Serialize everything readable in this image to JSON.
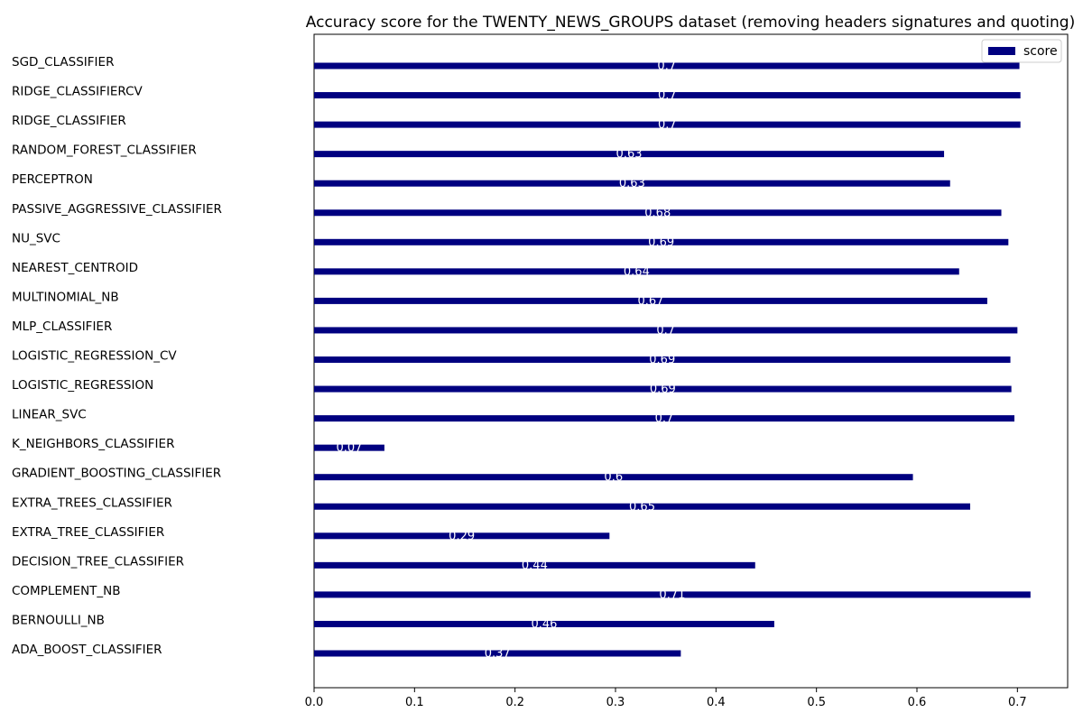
{
  "chart_data": {
    "type": "bar",
    "orientation": "horizontal",
    "title": "Accuracy score for the TWENTY_NEWS_GROUPS dataset (removing headers signatures and quoting)",
    "xlabel": "",
    "ylabel": "",
    "xlim": [
      0,
      0.75
    ],
    "xticks": [
      0.0,
      0.1,
      0.2,
      0.3,
      0.4,
      0.5,
      0.6,
      0.7
    ],
    "xtick_labels": [
      "0.0",
      "0.1",
      "0.2",
      "0.3",
      "0.4",
      "0.5",
      "0.6",
      "0.7"
    ],
    "grid": false,
    "legend": {
      "position": "top-right",
      "entries": [
        "score"
      ]
    },
    "bar_color": "#000080",
    "label_color": "#ffffff",
    "categories": [
      "ADA_BOOST_CLASSIFIER",
      "BERNOULLI_NB",
      "COMPLEMENT_NB",
      "DECISION_TREE_CLASSIFIER",
      "EXTRA_TREE_CLASSIFIER",
      "EXTRA_TREES_CLASSIFIER",
      "GRADIENT_BOOSTING_CLASSIFIER",
      "K_NEIGHBORS_CLASSIFIER",
      "LINEAR_SVC",
      "LOGISTIC_REGRESSION",
      "LOGISTIC_REGRESSION_CV",
      "MLP_CLASSIFIER",
      "MULTINOMIAL_NB",
      "NEAREST_CENTROID",
      "NU_SVC",
      "PASSIVE_AGGRESSIVE_CLASSIFIER",
      "PERCEPTRON",
      "RANDOM_FOREST_CLASSIFIER",
      "RIDGE_CLASSIFIER",
      "RIDGE_CLASSIFIERCV",
      "SGD_CLASSIFIER"
    ],
    "series": [
      {
        "name": "score",
        "values": [
          0.365,
          0.458,
          0.713,
          0.439,
          0.294,
          0.653,
          0.596,
          0.07,
          0.697,
          0.694,
          0.693,
          0.7,
          0.67,
          0.642,
          0.691,
          0.684,
          0.633,
          0.627,
          0.703,
          0.703,
          0.702
        ],
        "data_labels": [
          "0.37",
          "0.46",
          "0.71",
          "0.44",
          "0.29",
          "0.65",
          "0.6",
          "0.07",
          "0.7",
          "0.69",
          "0.69",
          "0.7",
          "0.67",
          "0.64",
          "0.69",
          "0.68",
          "0.63",
          "0.63",
          "0.7",
          "0.7",
          "0.7"
        ]
      }
    ]
  }
}
